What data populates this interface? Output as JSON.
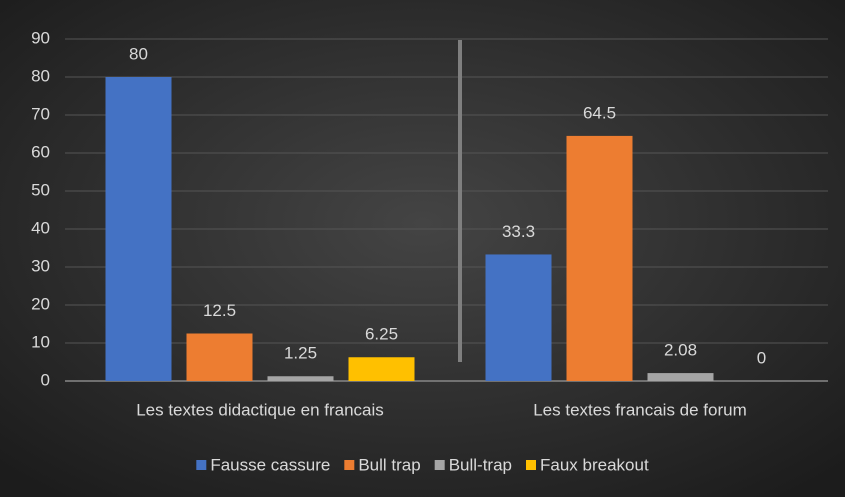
{
  "chart_data": {
    "type": "bar",
    "categories": [
      "Les textes didactique en francais",
      "Les textes francais de forum"
    ],
    "series": [
      {
        "name": "Fausse cassure",
        "color": "#4472c4",
        "values": [
          80,
          33.3
        ]
      },
      {
        "name": "Bull trap",
        "color": "#ed7d31",
        "values": [
          12.5,
          64.5
        ]
      },
      {
        "name": "Bull-trap",
        "color": "#a5a5a5",
        "values": [
          1.25,
          2.08
        ]
      },
      {
        "name": "Faux breakout",
        "color": "#ffc000",
        "values": [
          6.25,
          0
        ]
      }
    ],
    "ylim": [
      0,
      90
    ],
    "yticks": [
      0,
      10,
      20,
      30,
      40,
      50,
      60,
      70,
      80,
      90
    ],
    "grid": true,
    "legend": "bottom"
  }
}
